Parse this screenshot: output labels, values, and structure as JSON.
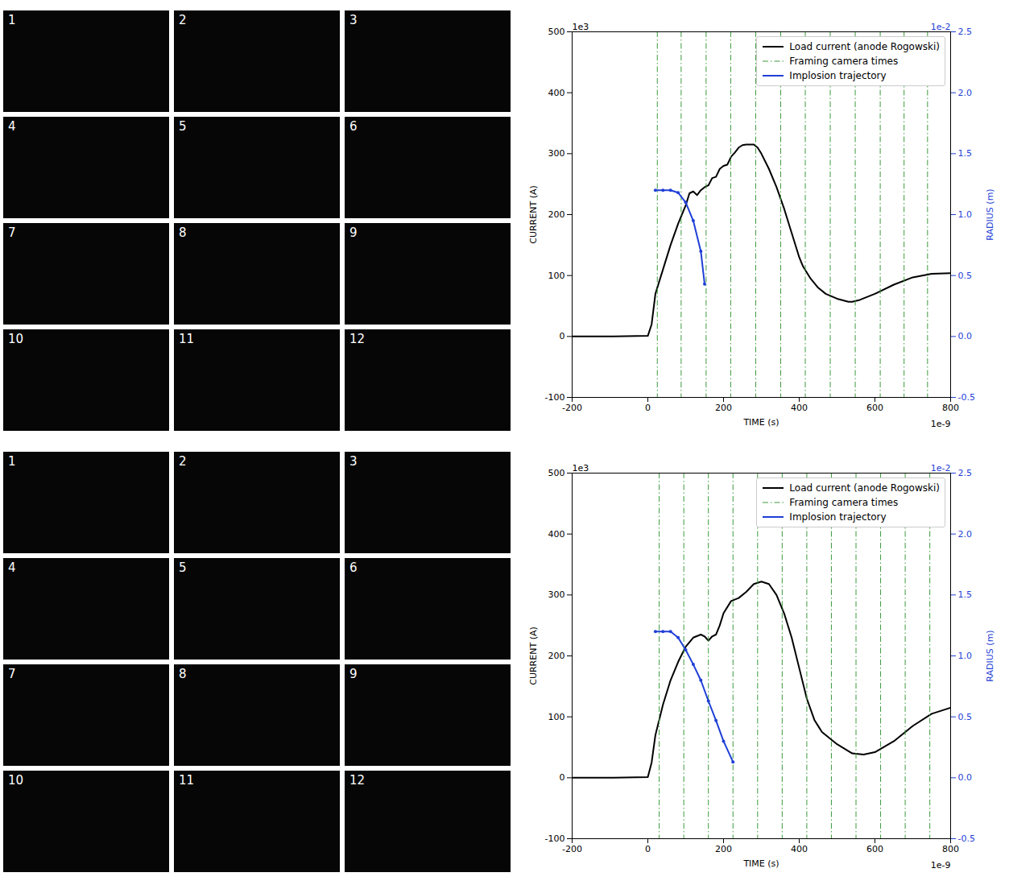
{
  "image_panels": [
    [
      "1",
      "2",
      "3",
      "4",
      "5",
      "6",
      "7",
      "8",
      "9",
      "10",
      "11",
      "12"
    ],
    [
      "1",
      "2",
      "3",
      "4",
      "5",
      "6",
      "7",
      "8",
      "9",
      "10",
      "11",
      "12"
    ]
  ],
  "chart_data": [
    {
      "type": "line",
      "xlabel": "TIME (s)",
      "ylabel": "CURRENT (A)",
      "y2label": "RADIUS (m)",
      "x_multiplier": "1e-9",
      "y_multiplier": "1e3",
      "y2_multiplier": "1e-2",
      "xlim": [
        -200,
        800
      ],
      "xticks": [
        -200,
        0,
        200,
        400,
        600,
        800
      ],
      "ylim": [
        -100,
        500
      ],
      "yticks": [
        -100,
        0,
        100,
        200,
        300,
        400,
        500
      ],
      "y2lim": [
        -0.5,
        2.5
      ],
      "y2ticks": [
        -0.5,
        {
          "value": 0,
          "label": "0.0"
        },
        0.5,
        {
          "value": 1,
          "label": "1.0"
        },
        1.5,
        {
          "value": 2,
          "label": "2.0"
        },
        2.5
      ],
      "legend": "upper right",
      "grid": false,
      "series": [
        {
          "name": "Load current (anode Rogowski)",
          "color": "#000000",
          "type": "line",
          "line_style": "solid",
          "x": [
            -200,
            -100,
            0,
            10,
            20,
            40,
            60,
            80,
            100,
            110,
            120,
            130,
            140,
            150,
            160,
            170,
            180,
            190,
            200,
            210,
            220,
            230,
            240,
            250,
            260,
            270,
            280,
            290,
            300,
            320,
            340,
            360,
            380,
            400,
            410,
            430,
            450,
            470,
            500,
            530,
            540,
            560,
            600,
            650,
            700,
            750,
            800
          ],
          "values": [
            0,
            0,
            1,
            20,
            70,
            110,
            150,
            185,
            215,
            235,
            238,
            232,
            240,
            245,
            248,
            260,
            262,
            275,
            280,
            282,
            295,
            302,
            310,
            314,
            315,
            315,
            315,
            310,
            300,
            275,
            245,
            210,
            170,
            130,
            115,
            95,
            80,
            70,
            62,
            57,
            57,
            60,
            70,
            85,
            97,
            103,
            104
          ]
        },
        {
          "name": "Framing camera times",
          "color": "#3c9a3c",
          "type": "vline",
          "line_style": "dashdot",
          "x": [
            25,
            88,
            154,
            219,
            285,
            351,
            416,
            482,
            548,
            614,
            677,
            739
          ]
        },
        {
          "name": "Implosion trajectory",
          "color": "#1f3fd6",
          "type": "line",
          "line_style": "solid",
          "marker": "o",
          "axis": "y2",
          "x": [
            20,
            40,
            60,
            80,
            100,
            120,
            140,
            150
          ],
          "values": [
            1.2,
            1.2,
            1.2,
            1.18,
            1.1,
            0.95,
            0.7,
            0.43
          ]
        }
      ]
    },
    {
      "type": "line",
      "xlabel": "TIME (s)",
      "ylabel": "CURRENT (A)",
      "y2label": "RADIUS (m)",
      "x_multiplier": "1e-9",
      "y_multiplier": "1e3",
      "y2_multiplier": "1e-2",
      "xlim": [
        -200,
        800
      ],
      "xticks": [
        -200,
        0,
        200,
        400,
        600,
        800
      ],
      "ylim": [
        -100,
        500
      ],
      "yticks": [
        -100,
        0,
        100,
        200,
        300,
        400,
        500
      ],
      "y2lim": [
        -0.5,
        2.5
      ],
      "y2ticks": [
        -0.5,
        {
          "value": 0,
          "label": "0.0"
        },
        0.5,
        {
          "value": 1,
          "label": "1.0"
        },
        1.5,
        {
          "value": 2,
          "label": "2.0"
        },
        2.5
      ],
      "legend": "upper right",
      "grid": false,
      "series": [
        {
          "name": "Load current (anode Rogowski)",
          "color": "#000000",
          "type": "line",
          "line_style": "solid",
          "x": [
            -200,
            -100,
            0,
            10,
            20,
            40,
            60,
            80,
            100,
            120,
            140,
            150,
            160,
            170,
            180,
            190,
            200,
            220,
            240,
            260,
            280,
            300,
            320,
            340,
            360,
            380,
            400,
            420,
            440,
            460,
            500,
            540,
            570,
            600,
            650,
            700,
            750,
            800
          ],
          "values": [
            0,
            0,
            1,
            25,
            70,
            120,
            160,
            190,
            215,
            230,
            235,
            232,
            225,
            232,
            235,
            250,
            270,
            290,
            295,
            305,
            318,
            322,
            318,
            300,
            270,
            230,
            180,
            130,
            95,
            75,
            55,
            40,
            38,
            42,
            60,
            85,
            105,
            115
          ]
        },
        {
          "name": "Framing camera times",
          "color": "#3c9a3c",
          "type": "vline",
          "line_style": "dashdot",
          "x": [
            30,
            95,
            160,
            225,
            290,
            355,
            420,
            485,
            550,
            615,
            680,
            745
          ]
        },
        {
          "name": "Implosion trajectory",
          "color": "#1f3fd6",
          "type": "line",
          "line_style": "solid",
          "marker": "o",
          "axis": "y2",
          "x": [
            20,
            40,
            60,
            80,
            100,
            120,
            140,
            160,
            180,
            200,
            225
          ],
          "values": [
            1.2,
            1.2,
            1.2,
            1.15,
            1.05,
            0.93,
            0.8,
            0.63,
            0.47,
            0.3,
            0.13
          ]
        }
      ]
    }
  ]
}
